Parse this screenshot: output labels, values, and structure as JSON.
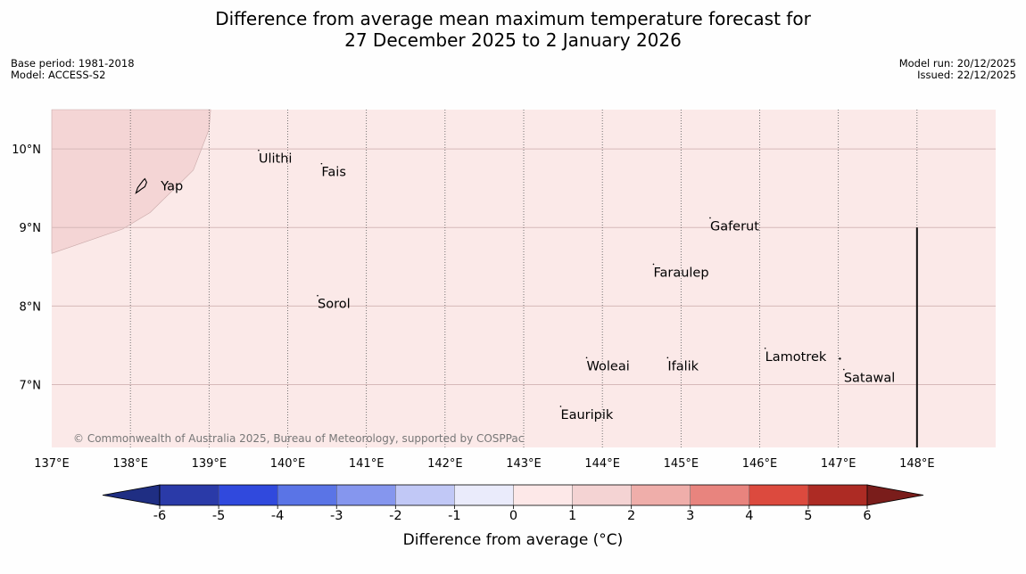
{
  "title": {
    "line1": "Difference from average mean maximum temperature forecast for",
    "line2": "27 December 2025 to 2 January 2026"
  },
  "meta": {
    "base_period": "Base period: 1981-2018",
    "model": "Model: ACCESS-S2",
    "model_run": "Model run: 20/12/2025",
    "issued": "Issued: 22/12/2025"
  },
  "map": {
    "lon_range": [
      137,
      149
    ],
    "lat_range": [
      6.2,
      10.5
    ],
    "lon_ticks": [
      {
        "value": 137,
        "label": "137°E"
      },
      {
        "value": 138,
        "label": "138°E"
      },
      {
        "value": 139,
        "label": "139°E"
      },
      {
        "value": 140,
        "label": "140°E"
      },
      {
        "value": 141,
        "label": "141°E"
      },
      {
        "value": 142,
        "label": "142°E"
      },
      {
        "value": 143,
        "label": "143°E"
      },
      {
        "value": 144,
        "label": "144°E"
      },
      {
        "value": 145,
        "label": "145°E"
      },
      {
        "value": 146,
        "label": "146°E"
      },
      {
        "value": 147,
        "label": "147°E"
      },
      {
        "value": 148,
        "label": "148°E"
      }
    ],
    "lat_ticks": [
      {
        "value": 10,
        "label": "10°N"
      },
      {
        "value": 9,
        "label": "9°N"
      },
      {
        "value": 8,
        "label": "8°N"
      },
      {
        "value": 7,
        "label": "7°N"
      }
    ],
    "places": [
      {
        "name": "Yap",
        "lon": 138.25,
        "lat": 9.53
      },
      {
        "name": "Ulithi",
        "lon": 139.63,
        "lat": 9.88
      },
      {
        "name": "Fais",
        "lon": 140.43,
        "lat": 9.71
      },
      {
        "name": "Gaferut",
        "lon": 145.37,
        "lat": 9.02
      },
      {
        "name": "Faraulep",
        "lon": 144.65,
        "lat": 8.43
      },
      {
        "name": "Sorol",
        "lon": 140.38,
        "lat": 8.03
      },
      {
        "name": "Lamotrek",
        "lon": 146.07,
        "lat": 7.36
      },
      {
        "name": "Woleai",
        "lon": 143.8,
        "lat": 7.24
      },
      {
        "name": "Ifalik",
        "lon": 144.83,
        "lat": 7.24
      },
      {
        "name": "Satawal",
        "lon": 147.07,
        "lat": 7.09
      },
      {
        "name": "Eauripik",
        "lon": 143.47,
        "lat": 6.62
      }
    ],
    "background_color": "#fbe9e8",
    "warm_region_color": "#f4d5d5",
    "copyright": "© Commonwealth of Australia 2025, Bureau of Meteorology, supported by COSPPac"
  },
  "colorbar": {
    "ticks": [
      "-6",
      "-5",
      "-4",
      "-3",
      "-2",
      "-1",
      "0",
      "1",
      "2",
      "3",
      "4",
      "5",
      "6"
    ],
    "colors": [
      "#2a3aa8",
      "#3049dd",
      "#5a74e6",
      "#8596ee",
      "#c1c8f6",
      "#eaebfb",
      "#fde8e8",
      "#f4d3d3",
      "#efaeaa",
      "#e8847e",
      "#dc4a3e",
      "#ad2b24"
    ],
    "under_color": "#1f2e83",
    "over_color": "#7a1d1b",
    "title": "Difference from average (°C)"
  }
}
